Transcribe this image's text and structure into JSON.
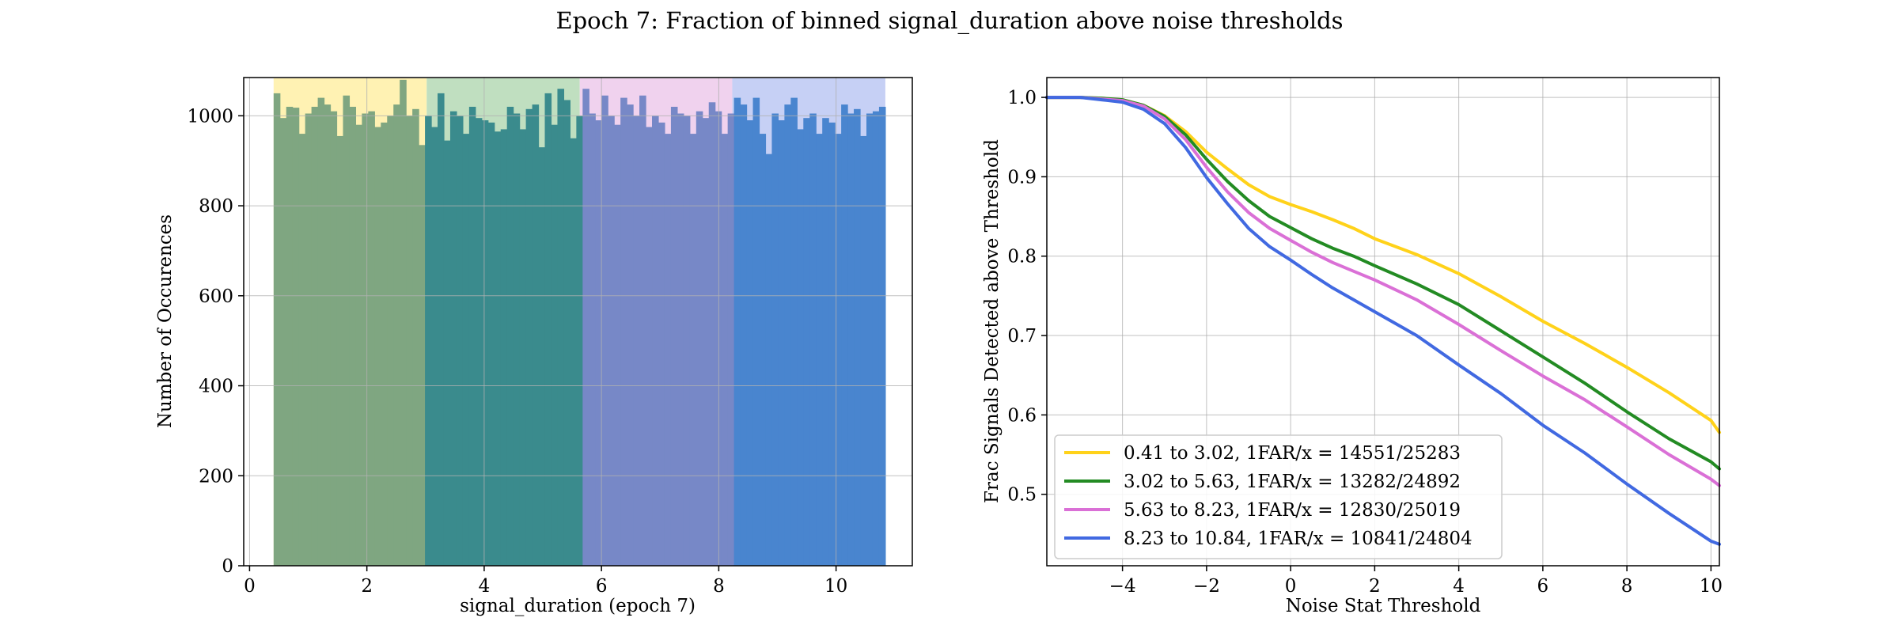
{
  "figure_title": "Epoch 7: Fraction of binned signal_duration above noise thresholds",
  "colors": {
    "bin1_bg": "#fff2b3",
    "bin2_bg": "#c0dfc0",
    "bin3_bg": "#f0d2ee",
    "bin4_bg": "#c6d0f5",
    "bin1_bar": "#7fa681",
    "bin2_bar": "#3a8b8d",
    "bin3_bar": "#7788c7",
    "bin4_bar": "#4985cf",
    "line1": "#ffd21a",
    "line2": "#238b23",
    "line3": "#da70d6",
    "line4": "#4169e1",
    "grid": "#b0b0b0"
  },
  "chart_data": [
    {
      "type": "bar",
      "subtype": "histogram",
      "xlabel": "signal_duration (epoch 7)",
      "ylabel": "Number of Occurences",
      "xlim": [
        -0.1,
        11.3
      ],
      "ylim": [
        0,
        1085
      ],
      "xticks": [
        0,
        2,
        4,
        6,
        8,
        10
      ],
      "yticks": [
        0,
        200,
        400,
        600,
        800,
        1000
      ],
      "grid": true,
      "shaded_bins": [
        [
          0.41,
          3.02
        ],
        [
          3.02,
          5.63
        ],
        [
          5.63,
          8.23
        ],
        [
          8.23,
          10.84
        ]
      ],
      "x_start": 0.41,
      "x_end": 10.84,
      "values": [
        1050,
        995,
        1020,
        1018,
        960,
        1005,
        1020,
        1040,
        1025,
        1010,
        955,
        1045,
        1020,
        980,
        1005,
        1010,
        975,
        985,
        1000,
        1025,
        1080,
        1000,
        1015,
        935,
        1000,
        975,
        1050,
        945,
        1010,
        1000,
        960,
        1020,
        995,
        990,
        985,
        965,
        970,
        1020,
        1005,
        970,
        1015,
        1025,
        930,
        1050,
        980,
        1060,
        1035,
        950,
        1000,
        1060,
        1005,
        990,
        1045,
        1000,
        980,
        1040,
        1025,
        1000,
        1045,
        975,
        1000,
        985,
        960,
        1020,
        1005,
        1000,
        960,
        1010,
        995,
        1030,
        1010,
        960,
        1005,
        1040,
        1025,
        990,
        1040,
        960,
        915,
        1005,
        990,
        1025,
        1040,
        970,
        995,
        1005,
        960,
        995,
        985,
        960,
        1025,
        1005,
        1015,
        955,
        1005,
        1010,
        1020
      ]
    },
    {
      "type": "line",
      "xlabel": "Noise Stat Threshold",
      "ylabel": "Frac Signals Detected above Threshold",
      "xlim": [
        -5.8,
        10.2
      ],
      "ylim": [
        0.41,
        1.025
      ],
      "xticks": [
        -4,
        -2,
        0,
        2,
        4,
        6,
        8,
        10
      ],
      "yticks": [
        0.5,
        0.6,
        0.7,
        0.8,
        0.9,
        1.0
      ],
      "grid": true,
      "legend_position": "lower-left",
      "x": [
        -5.8,
        -5,
        -4.5,
        -4,
        -3.5,
        -3,
        -2.5,
        -2,
        -1.5,
        -1,
        -0.5,
        0,
        0.5,
        1,
        1.5,
        2,
        3,
        4,
        5,
        6,
        7,
        8,
        9,
        10,
        10.2
      ],
      "series": [
        {
          "name": "0.41 to 3.02, 1FAR/x = 14551/25283",
          "values": [
            1.0,
            1.0,
            0.999,
            0.997,
            0.99,
            0.977,
            0.957,
            0.931,
            0.91,
            0.89,
            0.875,
            0.865,
            0.856,
            0.846,
            0.835,
            0.822,
            0.802,
            0.778,
            0.749,
            0.718,
            0.69,
            0.66,
            0.628,
            0.593,
            0.578
          ]
        },
        {
          "name": "3.02 to 5.63, 1FAR/x = 13282/24892",
          "values": [
            1.0,
            1.0,
            0.999,
            0.997,
            0.99,
            0.976,
            0.953,
            0.922,
            0.894,
            0.87,
            0.85,
            0.836,
            0.822,
            0.81,
            0.8,
            0.788,
            0.765,
            0.739,
            0.706,
            0.673,
            0.64,
            0.604,
            0.57,
            0.541,
            0.532
          ]
        },
        {
          "name": "5.63 to 8.23, 1FAR/x = 12830/25019",
          "values": [
            1.0,
            1.0,
            0.998,
            0.996,
            0.989,
            0.973,
            0.947,
            0.912,
            0.881,
            0.855,
            0.835,
            0.82,
            0.805,
            0.792,
            0.781,
            0.77,
            0.745,
            0.714,
            0.681,
            0.649,
            0.619,
            0.585,
            0.55,
            0.519,
            0.511
          ]
        },
        {
          "name": "8.23 to 10.84, 1FAR/x = 10841/24804",
          "values": [
            1.0,
            1.0,
            0.997,
            0.994,
            0.985,
            0.967,
            0.937,
            0.899,
            0.866,
            0.835,
            0.812,
            0.795,
            0.777,
            0.76,
            0.745,
            0.73,
            0.7,
            0.663,
            0.627,
            0.587,
            0.552,
            0.513,
            0.476,
            0.441,
            0.437
          ]
        }
      ]
    }
  ]
}
